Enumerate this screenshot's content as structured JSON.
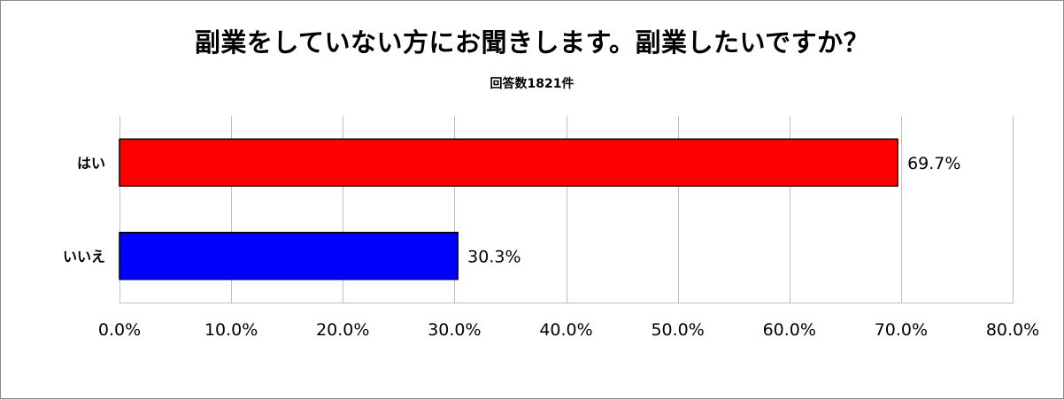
{
  "chart_data": {
    "type": "bar",
    "orientation": "horizontal",
    "title": "副業をしていない方にお聞きします。副業したいですか？",
    "subtitle": "回答数1821件",
    "categories": [
      "はい",
      "いいえ"
    ],
    "values": [
      69.7,
      30.3
    ],
    "value_labels": [
      "69.7%",
      "30.3%"
    ],
    "colors": [
      "#ff0000",
      "#0000ff"
    ],
    "xlim": [
      0,
      80
    ],
    "x_ticks": [
      0,
      10,
      20,
      30,
      40,
      50,
      60,
      70,
      80
    ],
    "x_tick_labels": [
      "0.0%",
      "10.0%",
      "20.0%",
      "30.0%",
      "40.0%",
      "50.0%",
      "60.0%",
      "70.0%",
      "80.0%"
    ],
    "grid": "vertical",
    "legend": "none"
  }
}
